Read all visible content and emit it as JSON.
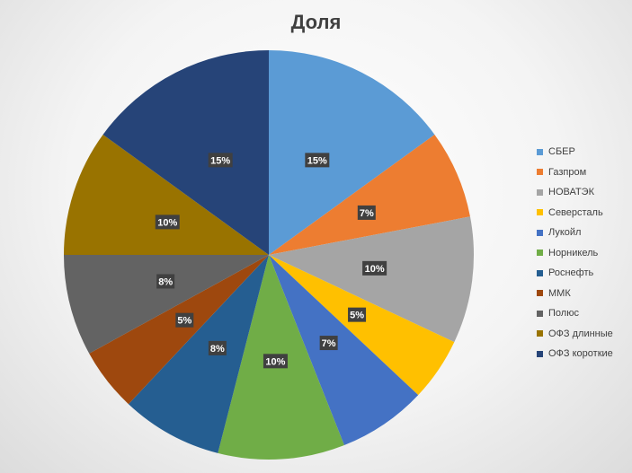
{
  "chart_data": {
    "type": "pie",
    "title": "Доля",
    "categories": [
      "СБЕР",
      "Газпром",
      "НОВАТЭК",
      "Северсталь",
      "Лукойл",
      "Норникель",
      "Роснефть",
      "ММК",
      "Полюс",
      "ОФЗ длинные",
      "ОФЗ короткие"
    ],
    "values": [
      15,
      7,
      10,
      5,
      7,
      10,
      8,
      5,
      8,
      10,
      15
    ],
    "data_labels": [
      "15%",
      "7%",
      "10%",
      "5%",
      "7%",
      "10%",
      "8%",
      "5%",
      "8%",
      "10%",
      "15%"
    ],
    "colors": [
      "#5B9BD5",
      "#ED7D31",
      "#A5A5A5",
      "#FFC000",
      "#4472C4",
      "#70AD47",
      "#255E91",
      "#9E480E",
      "#636363",
      "#997300",
      "#264478"
    ],
    "legend_position": "right",
    "start_angle_deg": 0,
    "direction": "clockwise"
  }
}
